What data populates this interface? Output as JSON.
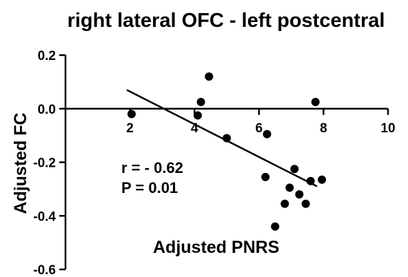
{
  "chart_data": {
    "type": "scatter",
    "title": "right lateral OFC - left postcentral",
    "xlabel": "Adjusted PNRS",
    "ylabel": "Adjusted FC",
    "xlim": [
      0,
      10
    ],
    "ylim": [
      -0.6,
      0.2
    ],
    "x_ticks": [
      2,
      4,
      6,
      8,
      10
    ],
    "y_ticks": [
      0.2,
      0.0,
      -0.2,
      -0.4,
      -0.6
    ],
    "x_tick_labels": [
      "2",
      "4",
      "6",
      "8",
      "10"
    ],
    "y_tick_labels": [
      "0.2",
      "0.0",
      "-0.2",
      "-0.4",
      "-0.6"
    ],
    "grid": false,
    "points": [
      {
        "x": 2.05,
        "y": -0.02
      },
      {
        "x": 4.1,
        "y": -0.025
      },
      {
        "x": 4.2,
        "y": 0.025
      },
      {
        "x": 4.45,
        "y": 0.12
      },
      {
        "x": 5.0,
        "y": -0.11
      },
      {
        "x": 6.25,
        "y": -0.095
      },
      {
        "x": 6.2,
        "y": -0.255
      },
      {
        "x": 6.5,
        "y": -0.44
      },
      {
        "x": 6.8,
        "y": -0.355
      },
      {
        "x": 6.95,
        "y": -0.295
      },
      {
        "x": 7.1,
        "y": -0.225
      },
      {
        "x": 7.25,
        "y": -0.32
      },
      {
        "x": 7.45,
        "y": -0.355
      },
      {
        "x": 7.6,
        "y": -0.27
      },
      {
        "x": 7.75,
        "y": 0.025
      },
      {
        "x": 7.95,
        "y": -0.265
      }
    ],
    "fit_line": {
      "x": [
        1.9,
        7.8
      ],
      "y": [
        0.07,
        -0.29
      ]
    },
    "annotations": [
      "r = - 0.62",
      "P = 0.01"
    ]
  }
}
